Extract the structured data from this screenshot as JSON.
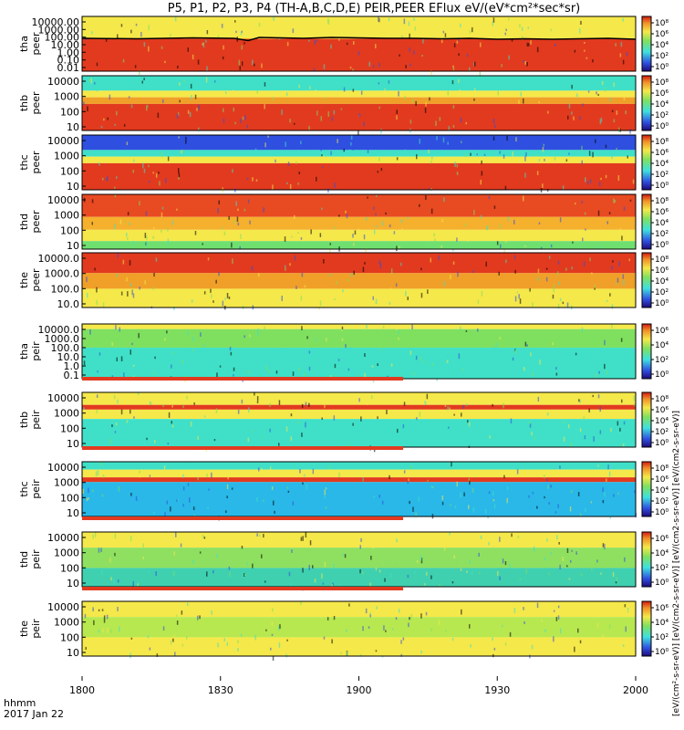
{
  "title": "P5, P1, P2, P3, P4 (TH-A,B,C,D,E) PEIR,PEER EFlux eV/(eV*cm²*sec*sr)",
  "footer": {
    "time_label": "hhmm",
    "date_label": "2017 Jan 22"
  },
  "colorbar_title": "[eV/(cm²-s-sr-eV)] [eV/(cm2-s-sr-eV)] [eV/(cm2-s-sr-eV)] [eV/(cm2-s-sr-eV)]",
  "chart_data": {
    "type": "heatmap",
    "x_axis": {
      "range": [
        "1800",
        "2000"
      ],
      "ticks": [
        "1800",
        "1830",
        "1900",
        "1930",
        "2000"
      ]
    },
    "panels": [
      {
        "name": "tha peer",
        "label_line1": "tha",
        "label_line2": "peer",
        "yticks": [
          "10000.00",
          "1000.00",
          "100.00",
          "10.00",
          "1.00",
          "0.10",
          "0.01"
        ],
        "ylog": [
          -2,
          4
        ],
        "cbar_ticks": [
          "10⁸",
          "10⁶",
          "10⁴",
          "10²",
          "10⁰"
        ],
        "bands": [
          {
            "from": 1.55,
            "to": 4.2,
            "color": "#f5e84a"
          },
          {
            "from": -2,
            "to": 1.55,
            "color": "#e23a1f"
          }
        ],
        "line": [
          [
            0,
            1.6
          ],
          [
            20,
            1.55
          ],
          [
            40,
            1.65
          ],
          [
            55,
            1.6
          ],
          [
            60,
            1.35
          ],
          [
            64,
            1.7
          ],
          [
            80,
            1.6
          ],
          [
            90,
            1.7
          ],
          [
            100,
            1.65
          ],
          [
            110,
            1.6
          ],
          [
            120,
            1.6
          ],
          [
            130,
            1.55
          ],
          [
            140,
            1.6
          ],
          [
            150,
            1.5
          ],
          [
            160,
            1.55
          ],
          [
            170,
            1.5
          ],
          [
            180,
            1.55
          ],
          [
            190,
            1.6
          ],
          [
            200,
            1.5
          ]
        ]
      },
      {
        "name": "thb peer",
        "label_line1": "thb",
        "label_line2": "peer",
        "yticks": [
          "10000",
          "1000",
          "100",
          "10"
        ],
        "ylog": [
          1,
          4.3
        ],
        "cbar_ticks": [
          "10⁸",
          "10⁶",
          "10⁴",
          "10²",
          "10⁰"
        ],
        "bands": [
          {
            "from": 3.4,
            "to": 4.3,
            "color": "#3fe0c7"
          },
          {
            "from": 3.0,
            "to": 3.4,
            "color": "#f5e84a"
          },
          {
            "from": 2.6,
            "to": 3.0,
            "color": "#f0a028"
          },
          {
            "from": 1.0,
            "to": 2.6,
            "color": "#e23a1f"
          }
        ]
      },
      {
        "name": "thc peer",
        "label_line1": "thc",
        "label_line2": "peer",
        "yticks": [
          "10000",
          "1000",
          "100",
          "10"
        ],
        "ylog": [
          1,
          4.3
        ],
        "cbar_ticks": [
          "10⁸",
          "10⁶",
          "10⁴",
          "10²",
          "10⁰"
        ],
        "bands": [
          {
            "from": 3.4,
            "to": 4.3,
            "color": "#2f4fe0"
          },
          {
            "from": 3.0,
            "to": 3.4,
            "color": "#3fe0c7"
          },
          {
            "from": 2.6,
            "to": 3.0,
            "color": "#f5e84a"
          },
          {
            "from": 1.0,
            "to": 2.6,
            "color": "#e23a1f"
          }
        ]
      },
      {
        "name": "thd peer",
        "label_line1": "thd",
        "label_line2": "peer",
        "yticks": [
          "10000",
          "1000",
          "100",
          "10"
        ],
        "ylog": [
          1,
          4.4
        ],
        "cbar_ticks": [
          "10⁸",
          "10⁶",
          "10⁴",
          "10²",
          "10⁰"
        ],
        "bands": [
          {
            "from": 3.0,
            "to": 4.4,
            "color": "#e84a22"
          },
          {
            "from": 2.2,
            "to": 3.0,
            "color": "#f5b02e"
          },
          {
            "from": 1.5,
            "to": 2.2,
            "color": "#f5e84a"
          },
          {
            "from": 1.0,
            "to": 1.5,
            "color": "#6fe070"
          }
        ]
      },
      {
        "name": "the peer",
        "label_line1": "the",
        "label_line2": "peer",
        "yticks": [
          "10000.0",
          "1000.0",
          "100.0",
          "10.0"
        ],
        "ylog": [
          0.8,
          4.3
        ],
        "cbar_ticks": [
          "10⁸",
          "10⁶",
          "10⁴",
          "10²",
          "10⁰"
        ],
        "bands": [
          {
            "from": 3.0,
            "to": 4.3,
            "color": "#e23a1f"
          },
          {
            "from": 2.0,
            "to": 3.0,
            "color": "#f0a028"
          },
          {
            "from": 0.8,
            "to": 2.0,
            "color": "#f5e84a"
          }
        ]
      },
      {
        "name": "tha peir",
        "label_line1": "tha",
        "label_line2": "peir",
        "yticks": [
          "10000.0",
          "1000.0",
          "100.0",
          "10.0",
          "1.0",
          "0.1"
        ],
        "ylog": [
          -1,
          4.3
        ],
        "cbar_ticks": [
          "10⁶",
          "10⁴",
          "10²",
          "10⁰"
        ],
        "bands": [
          {
            "from": 3.8,
            "to": 4.3,
            "color": "#f5e84a"
          },
          {
            "from": 2.0,
            "to": 3.8,
            "color": "#7fe060"
          },
          {
            "from": -1,
            "to": 2.0,
            "color": "#3fe0c7"
          }
        ]
      },
      {
        "name": "thb peir",
        "label_line1": "thb",
        "label_line2": "peir",
        "yticks": [
          "10000",
          "1000",
          "100",
          "10"
        ],
        "ylog": [
          0.8,
          4.3
        ],
        "cbar_ticks": [
          "10⁸",
          "10⁶",
          "10⁴",
          "10²",
          "10⁰"
        ],
        "bands": [
          {
            "from": 3.5,
            "to": 4.3,
            "color": "#f5e84a"
          },
          {
            "from": 3.2,
            "to": 3.5,
            "color": "#e23a1f"
          },
          {
            "from": 2.6,
            "to": 3.2,
            "color": "#f5e84a"
          },
          {
            "from": 0.8,
            "to": 2.6,
            "color": "#3fe0c7"
          }
        ]
      },
      {
        "name": "thc peir",
        "label_line1": "thc",
        "label_line2": "peir",
        "yticks": [
          "10000",
          "1000",
          "100",
          "10"
        ],
        "ylog": [
          0.8,
          4.3
        ],
        "cbar_ticks": [
          "10⁸",
          "10⁶",
          "10⁴",
          "10²",
          "10⁰"
        ],
        "bands": [
          {
            "from": 3.8,
            "to": 4.3,
            "color": "#3fe0c7"
          },
          {
            "from": 3.3,
            "to": 3.8,
            "color": "#f5e84a"
          },
          {
            "from": 3.0,
            "to": 3.3,
            "color": "#e23a1f"
          },
          {
            "from": 0.8,
            "to": 3.0,
            "color": "#29b8e8"
          }
        ]
      },
      {
        "name": "thd peir",
        "label_line1": "thd",
        "label_line2": "peir",
        "yticks": [
          "10000",
          "1000",
          "100",
          "10"
        ],
        "ylog": [
          0.8,
          4.3
        ],
        "cbar_ticks": [
          "10⁶",
          "10⁴",
          "10²",
          "10⁰"
        ],
        "bands": [
          {
            "from": 3.3,
            "to": 4.3,
            "color": "#f5e84a"
          },
          {
            "from": 2.0,
            "to": 3.3,
            "color": "#8fe060"
          },
          {
            "from": 0.8,
            "to": 2.0,
            "color": "#3fd0b0"
          }
        ]
      },
      {
        "name": "the peir",
        "label_line1": "the",
        "label_line2": "peir",
        "yticks": [
          "10000",
          "1000",
          "100",
          "10"
        ],
        "ylog": [
          0.8,
          4.3
        ],
        "cbar_ticks": [
          "10⁶",
          "10⁴",
          "10²",
          "10⁰"
        ],
        "bands": [
          {
            "from": 3.3,
            "to": 4.3,
            "color": "#f5e84a"
          },
          {
            "from": 2.0,
            "to": 3.3,
            "color": "#b8e850"
          },
          {
            "from": 0.8,
            "to": 2.0,
            "color": "#f5e84a"
          }
        ]
      }
    ]
  }
}
